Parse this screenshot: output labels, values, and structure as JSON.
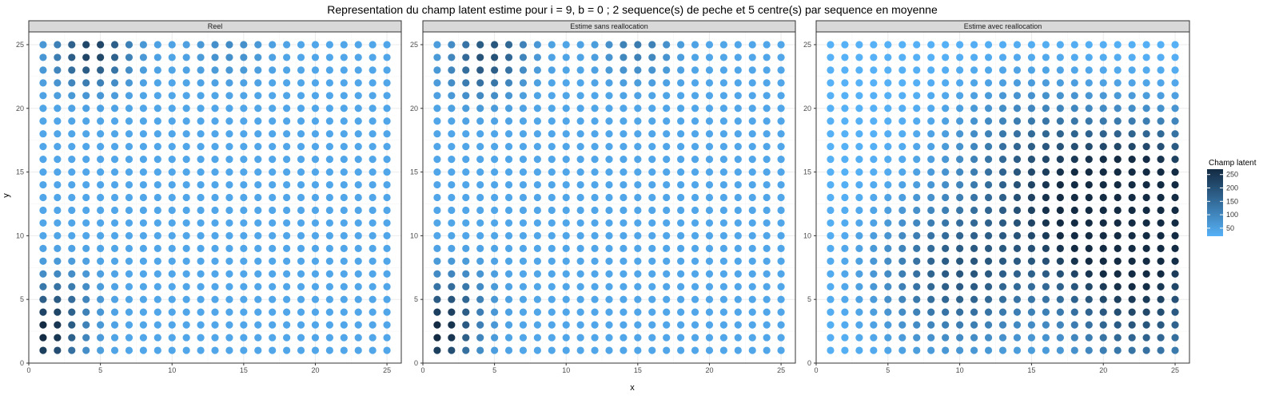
{
  "figure": {
    "title": "Representation du champ latent estime pour i = 9, b = 0 ; 2 sequence(s) de peche et 5 centre(s) par sequence en moyenne",
    "xlabel": "x",
    "ylabel": "y"
  },
  "legend": {
    "title": "Champ latent",
    "ticks": [
      50,
      100,
      150,
      200,
      250
    ],
    "range": [
      20,
      270
    ],
    "color_low": "#56B1F7",
    "color_high": "#132B43",
    "placement": "right"
  },
  "chart_data": [
    {
      "type": "scatter",
      "panel": "Reel",
      "x": {
        "min": 1,
        "max": 25,
        "step": 1
      },
      "y": {
        "min": 1,
        "max": 25,
        "step": 1
      },
      "xlim": [
        0,
        26
      ],
      "ylim": [
        0,
        26
      ],
      "xticks": [
        0,
        5,
        10,
        15,
        20,
        25
      ],
      "yticks": [
        0,
        5,
        10,
        15,
        20,
        25
      ],
      "grid": true,
      "hotspots": [
        {
          "x": 1,
          "y": 2,
          "value": 260
        },
        {
          "x": 4,
          "y": 24,
          "value": 150
        },
        {
          "x": 5,
          "y": 25,
          "value": 140
        },
        {
          "x": 2,
          "y": 5,
          "value": 140
        },
        {
          "x": 14,
          "y": 25,
          "value": 90
        }
      ],
      "base_value": 40
    },
    {
      "type": "scatter",
      "panel": "Estime sans reallocation",
      "x": {
        "min": 1,
        "max": 25,
        "step": 1
      },
      "y": {
        "min": 1,
        "max": 25,
        "step": 1
      },
      "xlim": [
        0,
        26
      ],
      "ylim": [
        0,
        26
      ],
      "xticks": [
        0,
        5,
        10,
        15,
        20,
        25
      ],
      "yticks": [
        0,
        5,
        10,
        15,
        20,
        25
      ],
      "grid": true,
      "hotspots": [
        {
          "x": 1,
          "y": 2,
          "value": 260
        },
        {
          "x": 5,
          "y": 25,
          "value": 150
        },
        {
          "x": 4,
          "y": 23,
          "value": 130
        },
        {
          "x": 15,
          "y": 25,
          "value": 120
        },
        {
          "x": 2,
          "y": 5,
          "value": 150
        }
      ],
      "base_value": 40
    },
    {
      "type": "scatter",
      "panel": "Estime avec reallocation",
      "x": {
        "min": 1,
        "max": 25,
        "step": 1
      },
      "y": {
        "min": 1,
        "max": 25,
        "step": 1
      },
      "xlim": [
        0,
        26
      ],
      "ylim": [
        0,
        26
      ],
      "xticks": [
        0,
        5,
        10,
        15,
        20,
        25
      ],
      "yticks": [
        0,
        5,
        10,
        15,
        20,
        25
      ],
      "grid": true,
      "hotspots": [
        {
          "x": 20,
          "y": 11,
          "value": 230
        },
        {
          "x": 24,
          "y": 13,
          "value": 250
        },
        {
          "x": 10,
          "y": 7,
          "value": 180
        },
        {
          "x": 23,
          "y": 4,
          "value": 170
        },
        {
          "x": 15,
          "y": 16,
          "value": 140
        }
      ],
      "base_value": 20
    }
  ]
}
